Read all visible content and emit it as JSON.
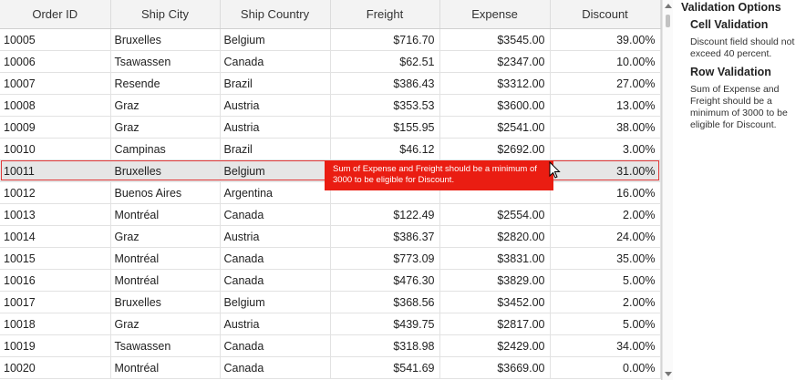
{
  "grid": {
    "columns": [
      "Order ID",
      "Ship City",
      "Ship Country",
      "Freight",
      "Expense",
      "Discount"
    ],
    "selected_row_index": 6,
    "rows": [
      [
        "10005",
        "Bruxelles",
        "Belgium",
        "$716.70",
        "$3545.00",
        "39.00%"
      ],
      [
        "10006",
        "Tsawassen",
        "Canada",
        "$62.51",
        "$2347.00",
        "10.00%"
      ],
      [
        "10007",
        "Resende",
        "Brazil",
        "$386.43",
        "$3312.00",
        "27.00%"
      ],
      [
        "10008",
        "Graz",
        "Austria",
        "$353.53",
        "$3600.00",
        "13.00%"
      ],
      [
        "10009",
        "Graz",
        "Austria",
        "$155.95",
        "$2541.00",
        "38.00%"
      ],
      [
        "10010",
        "Campinas",
        "Brazil",
        "$46.12",
        "$2692.00",
        "3.00%"
      ],
      [
        "10011",
        "Bruxelles",
        "Belgium",
        "",
        "",
        "31.00%"
      ],
      [
        "10012",
        "Buenos Aires",
        "Argentina",
        "",
        "",
        "16.00%"
      ],
      [
        "10013",
        "Montréal",
        "Canada",
        "$122.49",
        "$2554.00",
        "2.00%"
      ],
      [
        "10014",
        "Graz",
        "Austria",
        "$386.37",
        "$2820.00",
        "24.00%"
      ],
      [
        "10015",
        "Montréal",
        "Canada",
        "$773.09",
        "$3831.00",
        "35.00%"
      ],
      [
        "10016",
        "Montréal",
        "Canada",
        "$476.30",
        "$3829.00",
        "5.00%"
      ],
      [
        "10017",
        "Bruxelles",
        "Belgium",
        "$368.56",
        "$3452.00",
        "2.00%"
      ],
      [
        "10018",
        "Graz",
        "Austria",
        "$439.75",
        "$2817.00",
        "5.00%"
      ],
      [
        "10019",
        "Tsawassen",
        "Canada",
        "$318.98",
        "$2429.00",
        "34.00%"
      ],
      [
        "10020",
        "Montréal",
        "Canada",
        "$541.69",
        "$3669.00",
        "0.00%"
      ]
    ]
  },
  "tooltip": {
    "text": "Sum of Expense and Freight should be a minimum of 3000 to be eligible for Discount."
  },
  "panel": {
    "title": "Validation Options",
    "sections": [
      {
        "heading": "Cell Validation",
        "body": "Discount field should not exceed 40 percent."
      },
      {
        "heading": "Row Validation",
        "body": "Sum of Expense and Freight should be a minimum of 3000 to be eligible for Discount."
      }
    ]
  },
  "colors": {
    "error": "#ea1d12",
    "selected_row": "#e6e6e6",
    "header_bg": "#f3f3f3"
  }
}
